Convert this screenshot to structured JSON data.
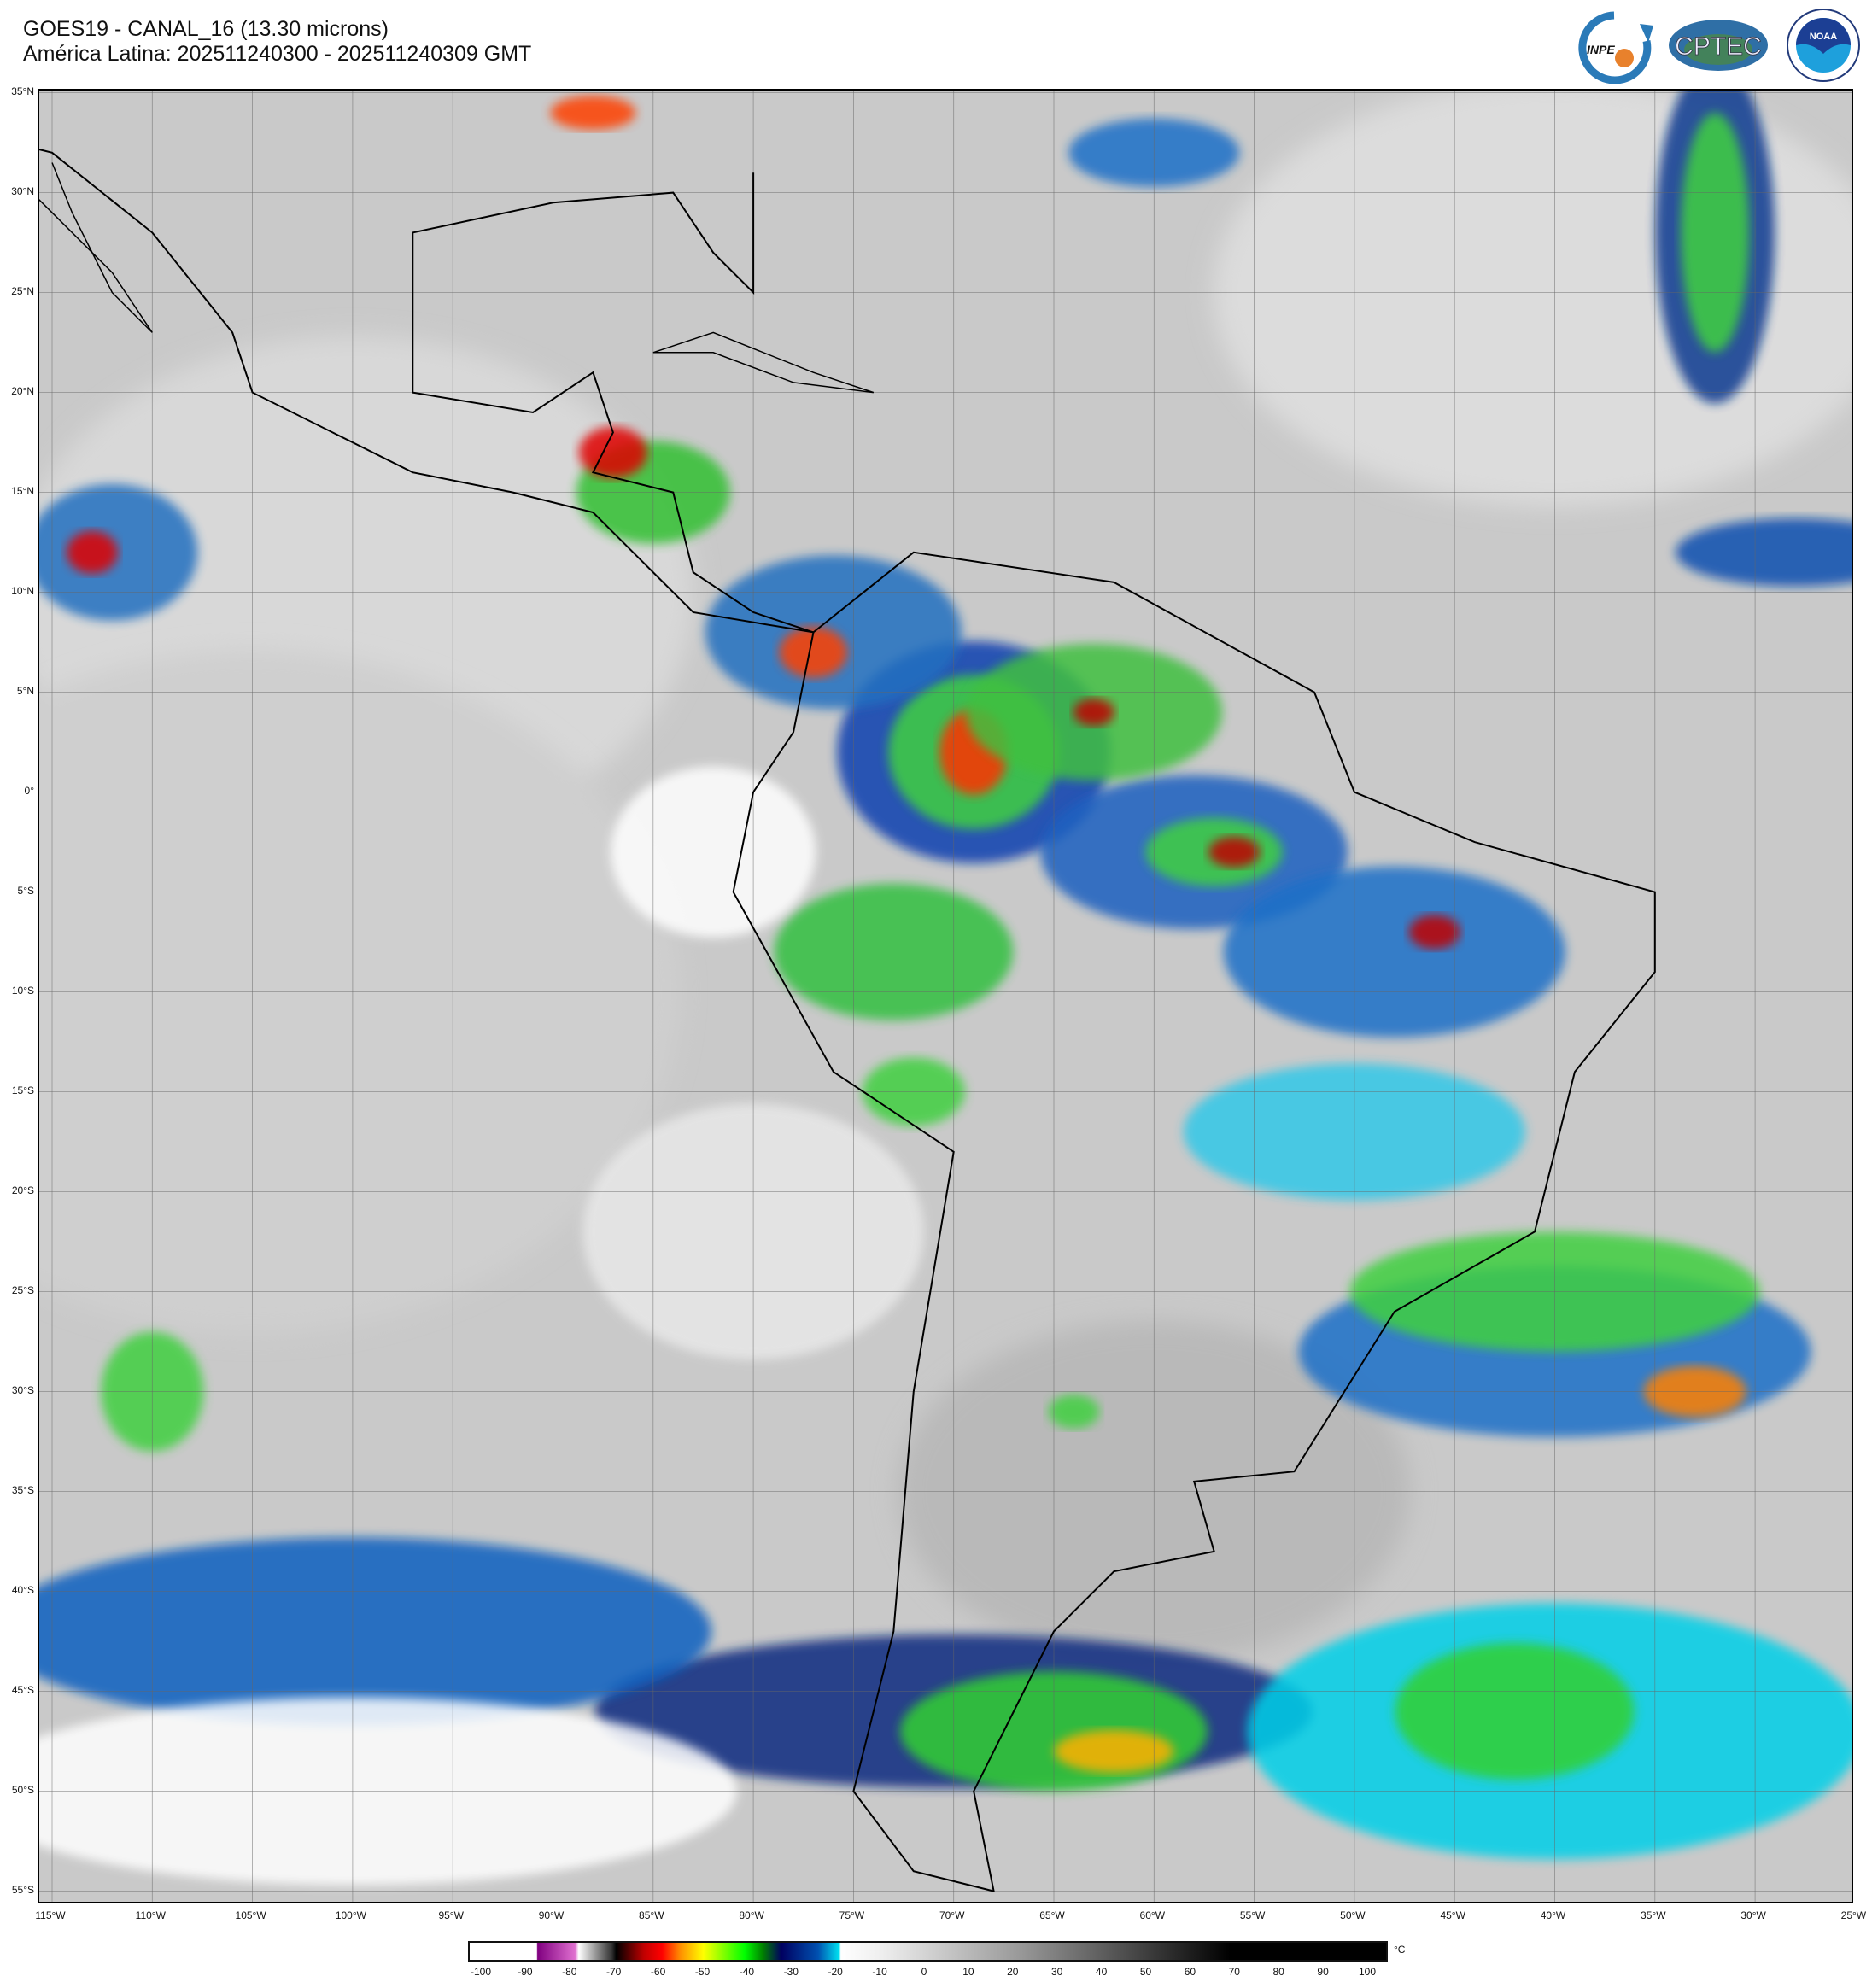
{
  "header": {
    "title": "GOES19 - CANAL_16 (13.30 microns)",
    "subtitle": "América Latina: 202511240300 - 202511240309 GMT"
  },
  "logos": [
    {
      "name": "INPE",
      "text": "INPE"
    },
    {
      "name": "CPTEC",
      "text": "CPTEC"
    },
    {
      "name": "NOAA",
      "text": "NOAA"
    }
  ],
  "map": {
    "latitude_labels": [
      "35°N",
      "30°N",
      "25°N",
      "20°N",
      "15°N",
      "10°N",
      "5°N",
      "0°",
      "5°S",
      "10°S",
      "15°S",
      "20°S",
      "25°S",
      "30°S",
      "35°S",
      "40°S",
      "45°S",
      "50°S",
      "55°S"
    ],
    "longitude_labels": [
      "115°W",
      "110°W",
      "105°W",
      "100°W",
      "95°W",
      "90°W",
      "85°W",
      "80°W",
      "75°W",
      "70°W",
      "65°W",
      "60°W",
      "55°W",
      "50°W",
      "45°W",
      "40°W",
      "35°W",
      "30°W",
      "25°W"
    ],
    "grid_spacing_degrees": 5
  },
  "colorbar": {
    "unit": "°C",
    "ticks": [
      "-100",
      "-90",
      "-80",
      "-70",
      "-60",
      "-50",
      "-40",
      "-30",
      "-20",
      "-10",
      "0",
      "10",
      "20",
      "30",
      "40",
      "50",
      "60",
      "70",
      "80",
      "90",
      "100"
    ]
  }
}
